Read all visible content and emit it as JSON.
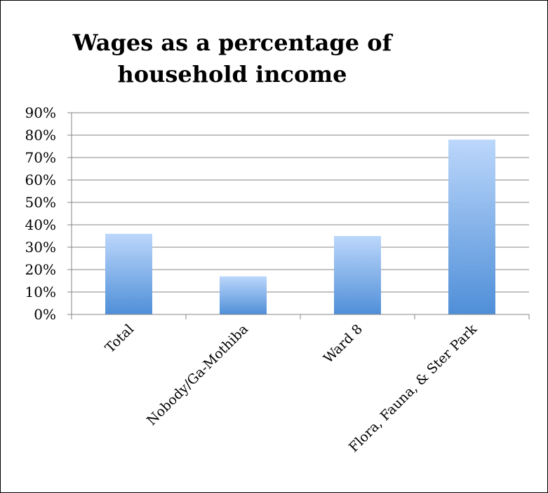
{
  "chart_data": {
    "type": "bar",
    "title_lines": [
      "Wages as a percentage of",
      "household income"
    ],
    "categories": [
      "Total",
      "Nobody/Ga-Mothiba",
      "Ward 8",
      "Flora, Fauna, & Ster Park"
    ],
    "values": [
      36,
      17,
      35,
      78
    ],
    "ylim": [
      0,
      90
    ],
    "yticks": [
      "0%",
      "10%",
      "20%",
      "30%",
      "40%",
      "50%",
      "60%",
      "70%",
      "80%",
      "90%"
    ],
    "grid": true,
    "legend": "none",
    "colors": {
      "bar_top": "#bcd7fb",
      "bar_bottom": "#4f8fd8",
      "grid": "#868686"
    }
  }
}
